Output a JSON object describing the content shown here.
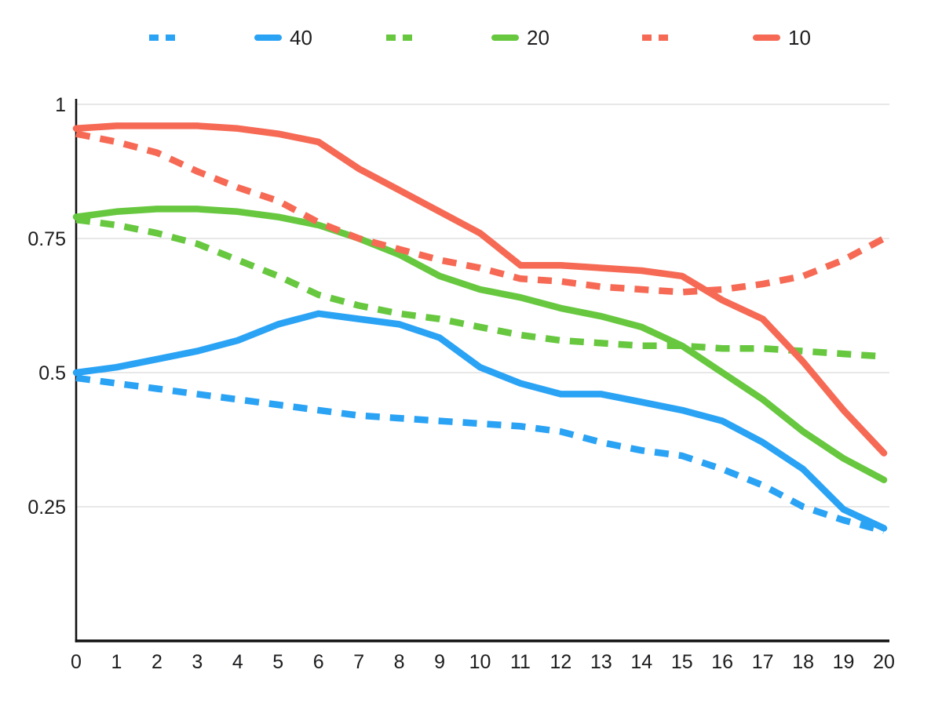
{
  "chart_title": "",
  "legend": {
    "position": "top",
    "items": [
      {
        "id": "blue-dashed",
        "label": "",
        "color": "#2aa3f5",
        "style": "dashed"
      },
      {
        "id": "blue-solid",
        "label": "40",
        "color": "#2aa3f5",
        "style": "solid"
      },
      {
        "id": "green-dashed",
        "label": "",
        "color": "#67c83f",
        "style": "dashed"
      },
      {
        "id": "green-solid",
        "label": "20",
        "color": "#67c83f",
        "style": "solid"
      },
      {
        "id": "red-dashed",
        "label": "",
        "color": "#f66a55",
        "style": "dashed"
      },
      {
        "id": "red-solid",
        "label": "10",
        "color": "#f66a55",
        "style": "solid"
      }
    ]
  },
  "axes": {
    "x_tick_labels": [
      "0",
      "1",
      "2",
      "3",
      "4",
      "5",
      "6",
      "7",
      "8",
      "9",
      "10",
      "11",
      "12",
      "13",
      "14",
      "15",
      "16",
      "17",
      "18",
      "19",
      "20"
    ],
    "y_ticks": [
      {
        "label": "1",
        "value": 1.0
      },
      {
        "label": "0.75",
        "value": 0.75
      },
      {
        "label": "0.5",
        "value": 0.5
      },
      {
        "label": "0.25",
        "value": 0.25
      }
    ],
    "axis_color": "#111111",
    "grid_color": "#d9d9d9",
    "label_color": "#1d1d1f"
  },
  "chart_data": {
    "type": "line",
    "title": "",
    "xlabel": "",
    "ylabel": "",
    "grid": true,
    "legend_position": "top",
    "xlim": [
      0,
      20
    ],
    "ylim": [
      0,
      1.05
    ],
    "x": [
      0,
      1,
      2,
      3,
      4,
      5,
      6,
      7,
      8,
      9,
      10,
      11,
      12,
      13,
      14,
      15,
      16,
      17,
      18,
      19,
      20
    ],
    "series": [
      {
        "name": "blue-dashed",
        "legend_label": "",
        "color": "#2aa3f5",
        "line_style": "dashed",
        "values": [
          0.49,
          0.48,
          0.47,
          0.46,
          0.45,
          0.44,
          0.43,
          0.42,
          0.415,
          0.41,
          0.405,
          0.4,
          0.39,
          0.37,
          0.355,
          0.345,
          0.32,
          0.29,
          0.25,
          0.225,
          0.205
        ]
      },
      {
        "name": "40",
        "legend_label": "40",
        "color": "#2aa3f5",
        "line_style": "solid",
        "values": [
          0.5,
          0.51,
          0.525,
          0.54,
          0.56,
          0.59,
          0.61,
          0.6,
          0.59,
          0.565,
          0.51,
          0.48,
          0.46,
          0.46,
          0.445,
          0.43,
          0.41,
          0.37,
          0.32,
          0.245,
          0.21
        ]
      },
      {
        "name": "green-dashed",
        "legend_label": "",
        "color": "#67c83f",
        "line_style": "dashed",
        "values": [
          0.785,
          0.775,
          0.76,
          0.74,
          0.71,
          0.68,
          0.645,
          0.625,
          0.61,
          0.6,
          0.585,
          0.57,
          0.56,
          0.555,
          0.55,
          0.55,
          0.545,
          0.545,
          0.54,
          0.535,
          0.53
        ]
      },
      {
        "name": "20",
        "legend_label": "20",
        "color": "#67c83f",
        "line_style": "solid",
        "values": [
          0.79,
          0.8,
          0.805,
          0.805,
          0.8,
          0.79,
          0.775,
          0.75,
          0.72,
          0.68,
          0.655,
          0.64,
          0.62,
          0.605,
          0.585,
          0.55,
          0.5,
          0.45,
          0.39,
          0.34,
          0.3
        ]
      },
      {
        "name": "red-dashed",
        "legend_label": "",
        "color": "#f66a55",
        "line_style": "dashed",
        "values": [
          0.945,
          0.93,
          0.91,
          0.875,
          0.845,
          0.82,
          0.78,
          0.75,
          0.73,
          0.71,
          0.695,
          0.675,
          0.67,
          0.66,
          0.655,
          0.65,
          0.655,
          0.665,
          0.68,
          0.71,
          0.75
        ]
      },
      {
        "name": "10",
        "legend_label": "10",
        "color": "#f66a55",
        "line_style": "solid",
        "values": [
          0.955,
          0.96,
          0.96,
          0.96,
          0.955,
          0.945,
          0.93,
          0.88,
          0.84,
          0.8,
          0.76,
          0.7,
          0.7,
          0.695,
          0.69,
          0.68,
          0.635,
          0.6,
          0.52,
          0.43,
          0.35
        ]
      }
    ]
  }
}
